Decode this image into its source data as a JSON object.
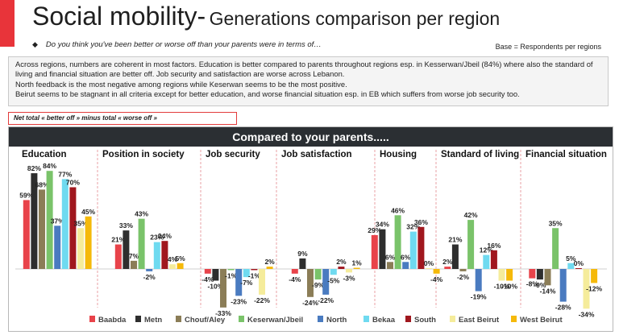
{
  "header": {
    "title_main": "Social mobility-",
    "title_sub": "Generations comparison per region",
    "question_bullet": "◆",
    "question": "Do you think you've been better or worse off than your parents were in terms of…",
    "base_note": "Base = Respondents per regions"
  },
  "insights": [
    "Across regions, numbers are coherent in most factors. Education is better compared to parents throughout regions esp. in Kesserwan/Jbeil (84%) where also the standard of living and financial situation are better off.  Job security and satisfaction are worse across Lebanon.",
    "North feedback is the most negative among regions while Keserwan seems to be the most positive.",
    "Beirut seems to be stagnant in all criteria except for better education, and worse financial situation esp. in EB which suffers from worse job security too."
  ],
  "note_box": "Net total « better off » minus total « worse off »",
  "chart_banner": "Compared to your parents.....",
  "chart_data": {
    "type": "bar",
    "title": "Compared to your parents.....",
    "categories": [
      "Education",
      "Position in society",
      "Job security",
      "Job satisfaction",
      "Housing",
      "Standard of living",
      "Financial situation"
    ],
    "value_format": "percent",
    "legend_position": "bottom",
    "series": [
      {
        "name": "Baabda",
        "color": "#e8434a",
        "values": [
          59,
          21,
          -4,
          -4,
          29,
          2,
          -8
        ]
      },
      {
        "name": "Metn",
        "color": "#2e2e2e",
        "values": [
          82,
          33,
          -10,
          9,
          34,
          21,
          -9
        ]
      },
      {
        "name": "Chouf/Aley",
        "color": "#8b7d57",
        "values": [
          68,
          7,
          -33,
          -24,
          6,
          -2,
          -14
        ]
      },
      {
        "name": "Keserwan/Jbeil",
        "color": "#7ac36a",
        "values": [
          84,
          43,
          -1,
          -9,
          46,
          42,
          35
        ]
      },
      {
        "name": "North",
        "color": "#4a7bc0",
        "values": [
          37,
          -2,
          -23,
          -22,
          6,
          -19,
          -28
        ]
      },
      {
        "name": "Bekaa",
        "color": "#6fdaf0",
        "values": [
          77,
          23,
          -7,
          -5,
          32,
          12,
          5
        ]
      },
      {
        "name": "South",
        "color": "#a0171e",
        "values": [
          70,
          24,
          -1,
          2,
          36,
          16,
          0
        ]
      },
      {
        "name": "East Beirut",
        "color": "#f5ec9b",
        "values": [
          35,
          4,
          -22,
          -3,
          0,
          -10,
          -34
        ]
      },
      {
        "name": "West Beirut",
        "color": "#f5b90a",
        "values": [
          45,
          5,
          2,
          1,
          -4,
          -10,
          -12
        ]
      }
    ]
  }
}
